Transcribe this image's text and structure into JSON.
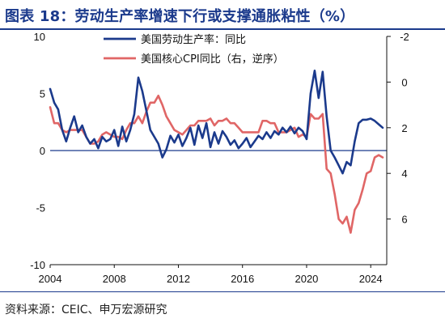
{
  "title": "图表 18：劳动生产率增速下行或支撑通胀粘性（%）",
  "source": "资料来源：CEIC、申万宏源研究",
  "colors": {
    "productivity": "#1b3a8c",
    "cpi": "#e06666",
    "zero_line": "#1b3a8c"
  },
  "chart_data": {
    "type": "line",
    "x_ticks": [
      "2004",
      "2008",
      "2012",
      "2016",
      "2020",
      "2024"
    ],
    "xlim": [
      2004,
      2025
    ],
    "left_axis": {
      "ylim": [
        -10,
        10
      ],
      "ticks": [
        "10",
        "5",
        "0",
        "-5",
        "-10"
      ],
      "tick_values": [
        10,
        5,
        0,
        -5,
        -10
      ]
    },
    "right_axis": {
      "ylim": [
        -2,
        8
      ],
      "inverted": true,
      "ticks": [
        "-2",
        "0",
        "2",
        "4",
        "6"
      ],
      "tick_values": [
        -2,
        0,
        2,
        4,
        6
      ]
    },
    "legend_placement": "top-center",
    "series": [
      {
        "name": "美国劳动生产率：同比",
        "axis": "left",
        "color": "#1b3a8c",
        "x": [
          2004.0,
          2004.25,
          2004.5,
          2004.75,
          2005.0,
          2005.25,
          2005.5,
          2005.75,
          2006.0,
          2006.25,
          2006.5,
          2006.75,
          2007.0,
          2007.25,
          2007.5,
          2007.75,
          2008.0,
          2008.25,
          2008.5,
          2008.75,
          2009.0,
          2009.25,
          2009.5,
          2009.75,
          2010.0,
          2010.25,
          2010.5,
          2010.75,
          2011.0,
          2011.25,
          2011.5,
          2011.75,
          2012.0,
          2012.25,
          2012.5,
          2012.75,
          2013.0,
          2013.25,
          2013.5,
          2013.75,
          2014.0,
          2014.25,
          2014.5,
          2014.75,
          2015.0,
          2015.25,
          2015.5,
          2015.75,
          2016.0,
          2016.25,
          2016.5,
          2016.75,
          2017.0,
          2017.25,
          2017.5,
          2017.75,
          2018.0,
          2018.25,
          2018.5,
          2018.75,
          2019.0,
          2019.25,
          2019.5,
          2019.75,
          2020.0,
          2020.25,
          2020.5,
          2020.75,
          2021.0,
          2021.25,
          2021.5,
          2021.75,
          2022.0,
          2022.25,
          2022.5,
          2022.75,
          2023.0,
          2023.25,
          2023.5,
          2023.75,
          2024.0,
          2024.25,
          2024.5,
          2024.75
        ],
        "values": [
          5.4,
          4.2,
          3.6,
          1.8,
          0.8,
          2.0,
          3.0,
          1.6,
          2.2,
          1.2,
          0.6,
          1.0,
          0.2,
          1.2,
          0.8,
          1.0,
          1.8,
          0.4,
          2.1,
          0.8,
          1.8,
          3.2,
          6.4,
          5.2,
          3.5,
          1.8,
          1.2,
          0.6,
          -0.6,
          0.1,
          1.3,
          0.7,
          1.4,
          0.4,
          1.1,
          2.0,
          0.5,
          2.2,
          1.1,
          2.4,
          0.3,
          1.6,
          0.6,
          1.7,
          1.2,
          0.5,
          0.9,
          0.2,
          0.6,
          1.1,
          0.3,
          0.8,
          1.3,
          1.0,
          1.6,
          1.1,
          1.7,
          1.4,
          2.0,
          1.6,
          2.1,
          1.5,
          2.0,
          1.7,
          1.0,
          5.0,
          7.0,
          4.6,
          6.9,
          3.0,
          0.0,
          -0.6,
          -1.3,
          -2.0,
          -1.0,
          -1.3,
          0.8,
          2.4,
          2.7,
          2.7,
          2.8,
          2.6,
          2.3,
          2.0
        ]
      },
      {
        "name": "美国核心CPI同比（右，逆序）",
        "axis": "right",
        "color": "#e06666",
        "x": [
          2004.0,
          2004.25,
          2004.5,
          2004.75,
          2005.0,
          2005.25,
          2005.5,
          2005.75,
          2006.0,
          2006.25,
          2006.5,
          2006.75,
          2007.0,
          2007.25,
          2007.5,
          2007.75,
          2008.0,
          2008.25,
          2008.5,
          2008.75,
          2009.0,
          2009.25,
          2009.5,
          2009.75,
          2010.0,
          2010.25,
          2010.5,
          2010.75,
          2011.0,
          2011.25,
          2011.5,
          2011.75,
          2012.0,
          2012.25,
          2012.5,
          2012.75,
          2013.0,
          2013.25,
          2013.5,
          2013.75,
          2014.0,
          2014.25,
          2014.5,
          2014.75,
          2015.0,
          2015.25,
          2015.5,
          2015.75,
          2016.0,
          2016.25,
          2016.5,
          2016.75,
          2017.0,
          2017.25,
          2017.5,
          2017.75,
          2018.0,
          2018.25,
          2018.5,
          2018.75,
          2019.0,
          2019.25,
          2019.5,
          2019.75,
          2020.0,
          2020.25,
          2020.5,
          2020.75,
          2021.0,
          2021.25,
          2021.5,
          2021.75,
          2022.0,
          2022.25,
          2022.5,
          2022.75,
          2023.0,
          2023.25,
          2023.5,
          2023.75,
          2024.0,
          2024.25,
          2024.5,
          2024.75
        ],
        "values": [
          1.1,
          1.8,
          1.8,
          2.1,
          2.2,
          2.1,
          2.1,
          2.1,
          2.1,
          2.4,
          2.7,
          2.7,
          2.6,
          2.3,
          2.2,
          2.3,
          2.4,
          2.4,
          2.5,
          2.1,
          1.8,
          1.8,
          1.5,
          1.8,
          1.3,
          0.9,
          0.9,
          0.6,
          1.0,
          1.5,
          1.8,
          2.1,
          2.2,
          2.3,
          2.1,
          1.9,
          1.9,
          1.7,
          1.7,
          1.7,
          1.6,
          1.9,
          1.7,
          1.7,
          1.6,
          1.8,
          1.8,
          2.0,
          2.2,
          2.2,
          2.2,
          2.2,
          2.2,
          1.7,
          1.7,
          1.8,
          1.8,
          2.2,
          2.2,
          2.2,
          2.1,
          2.0,
          2.4,
          2.3,
          2.4,
          1.4,
          1.6,
          1.6,
          1.4,
          3.8,
          4.0,
          4.9,
          6.0,
          6.2,
          5.9,
          6.6,
          5.6,
          5.3,
          4.7,
          4.0,
          3.9,
          3.3,
          3.2,
          3.3
        ]
      }
    ]
  }
}
